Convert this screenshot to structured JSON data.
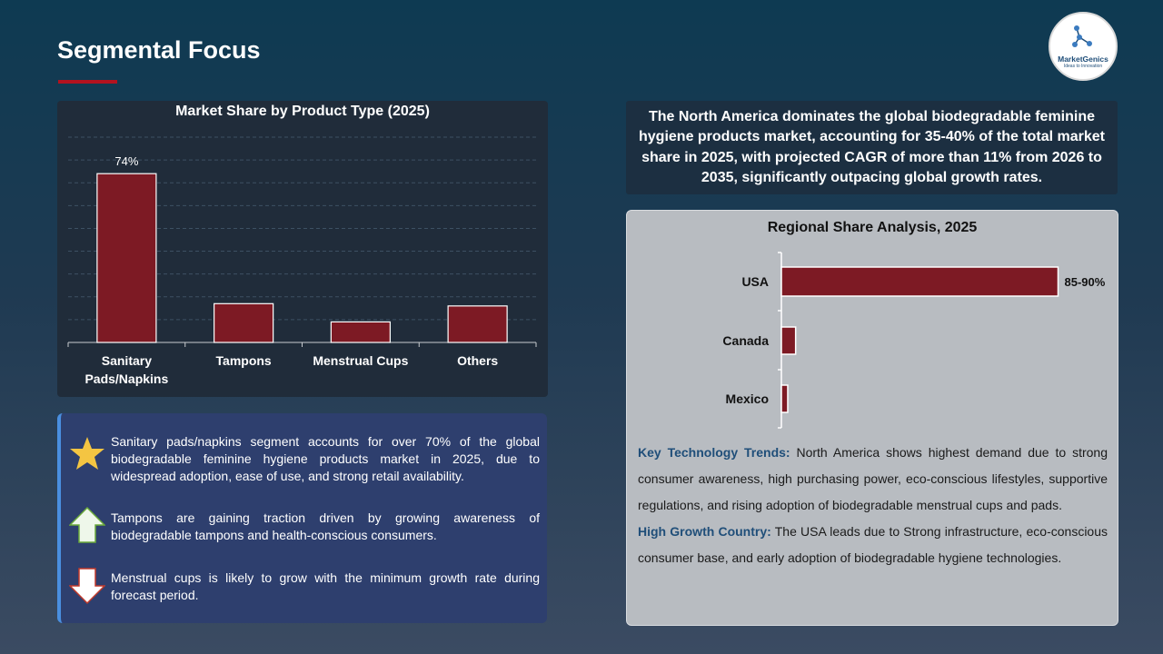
{
  "page": {
    "title": "Segmental Focus",
    "logo": {
      "name": "MarketGenics",
      "tagline": "Ideas to Innovation"
    }
  },
  "summary": "The North America dominates the global biodegradable feminine hygiene products market, accounting for 35-40% of the total market share in 2025, with projected CAGR of more than 11% from 2026 to 2035, significantly outpacing global growth rates.",
  "colors": {
    "bar": "#7d1a24",
    "accent_line": "#b3121f",
    "heading_blue": "#1f4e79"
  },
  "chart_data": [
    {
      "type": "bar",
      "title": "Market Share by Product Type (2025)",
      "categories": [
        "Sanitary Pads/Napkins",
        "Tampons",
        "Menstrual Cups",
        "Others"
      ],
      "category_lines": [
        [
          "Sanitary",
          "Pads/Napkins"
        ],
        [
          "Tampons"
        ],
        [
          "Menstrual Cups"
        ],
        [
          "Others"
        ]
      ],
      "values": [
        74,
        17,
        9,
        16
      ],
      "data_labels": [
        "74%",
        "",
        "",
        ""
      ],
      "ylim": [
        0,
        90
      ],
      "grid": true,
      "xlabel": "",
      "ylabel": ""
    },
    {
      "type": "bar",
      "orientation": "horizontal",
      "title": "Regional Share Analysis, 2025",
      "categories": [
        "USA",
        "Canada",
        "Mexico"
      ],
      "values": [
        87.5,
        4.5,
        2
      ],
      "data_labels": [
        "85-90%",
        "",
        ""
      ],
      "xlim": [
        0,
        100
      ],
      "grid": false
    }
  ],
  "regional_notes": [
    {
      "heading": "Key Technology Trends:",
      "text": " North America shows highest demand due to strong consumer awareness, high purchasing power, eco-conscious lifestyles, supportive regulations, and rising adoption of biodegradable menstrual cups and pads."
    },
    {
      "heading": "High Growth Country:",
      "text": " The USA leads due to Strong infrastructure, eco-conscious consumer base, and early adoption of biodegradable hygiene technologies."
    }
  ],
  "notes": [
    {
      "icon": "star-icon",
      "text": "Sanitary pads/napkins segment accounts for over 70% of the global biodegradable feminine hygiene products market in 2025, due to widespread adoption, ease of use, and strong retail availability."
    },
    {
      "icon": "arrow-up-icon",
      "text": "Tampons are gaining traction driven by growing awareness of biodegradable tampons and health-conscious consumers."
    },
    {
      "icon": "arrow-down-icon",
      "text": "Menstrual cups is likely to grow with the minimum growth rate during forecast period."
    }
  ]
}
